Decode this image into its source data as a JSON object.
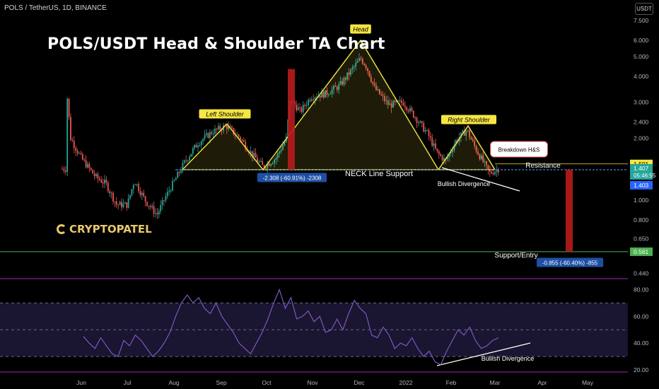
{
  "header": {
    "symbol": "POLS / TetherUS, 1D, BINANCE",
    "currency_badge": "USDT"
  },
  "chart_title": "POLS/USDT Head & Shoulder TA Chart",
  "logo": {
    "text": "CRYPTOPATEL",
    "color": "#e8c86a"
  },
  "colors": {
    "up": "#26a69a",
    "down": "#ef5350",
    "pattern": "#f5e642",
    "neckline": "#4a90e2",
    "rsi": "#7e57c2",
    "support": "#4caf50",
    "target": "#b71c1c"
  },
  "chart_data": [
    {
      "type": "candlestick",
      "title": "POLS/USDT Head & Shoulder TA Chart",
      "x_ticks": [
        "Jun",
        "Jul",
        "Aug",
        "Sep",
        "Oct",
        "Nov",
        "Dec",
        "2022",
        "Feb",
        "Mar",
        "Apr",
        "May"
      ],
      "y_scale": "log",
      "y_ticks": [
        "7.500",
        "6.000",
        "5.000",
        "4.000",
        "3.000",
        "2.400",
        "2.000",
        "1.000",
        "0.800",
        "0.650",
        "0.440"
      ],
      "price_labels": {
        "resistance": "1.501",
        "current": "1.407",
        "countdown": "05:46:55",
        "low": "1.403",
        "support": "0.561"
      },
      "annotations": {
        "head": "Head",
        "left_shoulder": "Left Shoulder",
        "right_shoulder": "Right Shoulder",
        "neckline": "NECK Line Support",
        "breakdown": "Breakdown H&S",
        "resistance": "Resistance",
        "bullish_divergence": "Bullish Divergence",
        "support_entry": "Support/Entry",
        "measure_left": "-2.308 (-60.91%) -2308",
        "measure_right": "-0.855 (-60.40%) -855"
      },
      "pattern_points": [
        {
          "label": "Left Shoulder",
          "date": "Sep",
          "price": 2.35
        },
        {
          "label": "Head",
          "date": "Dec",
          "price": 6.0
        },
        {
          "label": "Right Shoulder",
          "date": "Feb",
          "price": 2.3
        }
      ],
      "levels": {
        "resistance": 1.501,
        "neckline": 1.407,
        "support": 0.561
      }
    },
    {
      "type": "line",
      "title": "RSI",
      "y_ticks": [
        "80.00",
        "60.00",
        "40.00",
        "20.00"
      ],
      "ylim": [
        20,
        85
      ],
      "bands": [
        70,
        50,
        30
      ],
      "divergence_label": "Bullish Divergence",
      "series": [
        {
          "values": [
            45,
            40,
            36,
            44,
            38,
            32,
            30,
            42,
            38,
            46,
            42,
            36,
            30,
            34,
            40,
            48,
            60,
            70,
            76,
            70,
            74,
            66,
            62,
            70,
            60,
            54,
            48,
            40,
            36,
            32,
            40,
            48,
            58,
            70,
            80,
            66,
            74,
            58,
            60,
            64,
            56,
            60,
            48,
            50,
            58,
            50,
            62,
            72,
            66,
            62,
            46,
            44,
            52,
            46,
            36,
            40,
            38,
            44,
            36,
            30,
            34,
            26,
            24,
            34,
            42,
            50,
            46,
            52,
            42,
            36,
            38,
            42,
            44
          ]
        }
      ]
    }
  ]
}
